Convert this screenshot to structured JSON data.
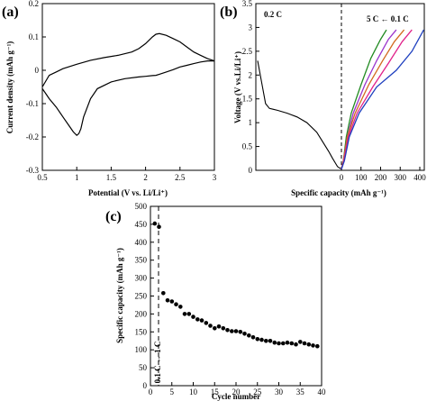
{
  "chart_data": [
    {
      "panel": "(a)",
      "type": "line",
      "xlabel": "Potential (V vs. Li/Li⁺)",
      "ylabel": "Current density (mAh g⁻¹)",
      "xlim": [
        0.5,
        3
      ],
      "ylim": [
        -0.3,
        0.2
      ],
      "xticks": [
        "0.5",
        "1",
        "1.5",
        "2",
        "2.5",
        "3"
      ],
      "yticks": [
        "-0.3",
        "-0.2",
        "-0.1",
        "0",
        "0.1",
        "0.2"
      ],
      "series": [
        {
          "color": "#000000",
          "x": [
            0.5,
            0.55,
            0.6,
            0.7,
            0.8,
            0.9,
            0.95,
            1.0,
            1.03,
            1.06,
            1.1,
            1.2,
            1.3,
            1.5,
            1.7,
            1.9,
            2.0,
            2.1,
            2.15,
            2.2,
            2.3,
            2.4,
            2.5,
            2.6,
            2.7,
            2.8,
            2.9,
            3.0,
            2.9,
            2.8,
            2.7,
            2.6,
            2.5,
            2.4,
            2.3,
            2.2,
            2.15,
            2.1,
            2.05,
            2.0,
            1.9,
            1.8,
            1.6,
            1.4,
            1.2,
            1.0,
            0.8,
            0.7,
            0.6,
            0.5
          ],
          "y": [
            -0.055,
            -0.07,
            -0.085,
            -0.11,
            -0.14,
            -0.17,
            -0.185,
            -0.195,
            -0.19,
            -0.175,
            -0.14,
            -0.085,
            -0.055,
            -0.035,
            -0.025,
            -0.02,
            -0.018,
            -0.016,
            -0.015,
            -0.012,
            -0.005,
            0.002,
            0.01,
            0.015,
            0.02,
            0.025,
            0.028,
            0.028,
            0.035,
            0.045,
            0.055,
            0.07,
            0.085,
            0.095,
            0.105,
            0.11,
            0.108,
            0.1,
            0.09,
            0.08,
            0.065,
            0.055,
            0.045,
            0.038,
            0.03,
            0.018,
            0.005,
            -0.005,
            -0.015,
            -0.05
          ]
        }
      ]
    },
    {
      "panel": "(b)",
      "type": "line",
      "xlabel": "Specific capacity (mAh g⁻¹)",
      "ylabel": "Voltage (V vs.Li/Li⁺)",
      "ylim": [
        0,
        3.5
      ],
      "yticks": [
        "0",
        "0.5",
        "1",
        "1.5",
        "2",
        "2.5",
        "3",
        "3.5"
      ],
      "xticks": [
        "0",
        "100",
        "200",
        "300",
        "400"
      ],
      "annotations": [
        "0.2 C",
        "5 C ← 0.1 C"
      ],
      "discharge": {
        "color": "#000000",
        "x": [
          0,
          20,
          40,
          60,
          80,
          100,
          150,
          200,
          250,
          300,
          330,
          360,
          380,
          395,
          405,
          415,
          420,
          425
        ],
        "y": [
          2.3,
          1.85,
          1.4,
          1.3,
          1.28,
          1.26,
          1.2,
          1.12,
          1.0,
          0.8,
          0.6,
          0.4,
          0.25,
          0.15,
          0.08,
          0.05,
          0.04,
          0.03
        ]
      },
      "series": [
        {
          "color": "#228B22",
          "x": [
            0,
            10,
            25,
            50,
            100,
            150,
            200,
            230
          ],
          "y": [
            0.02,
            0.2,
            0.7,
            1.2,
            1.8,
            2.35,
            2.75,
            2.95
          ]
        },
        {
          "color": "#9932CC",
          "x": [
            0,
            10,
            30,
            60,
            120,
            180,
            240,
            280
          ],
          "y": [
            0.02,
            0.2,
            0.7,
            1.2,
            1.8,
            2.3,
            2.75,
            2.95
          ]
        },
        {
          "color": "#D2691E",
          "x": [
            0,
            10,
            30,
            70,
            140,
            210,
            270,
            320
          ],
          "y": [
            0.02,
            0.2,
            0.7,
            1.2,
            1.8,
            2.3,
            2.7,
            2.95
          ]
        },
        {
          "color": "#E0218A",
          "x": [
            0,
            12,
            35,
            80,
            160,
            240,
            310,
            360
          ],
          "y": [
            0.02,
            0.2,
            0.7,
            1.2,
            1.75,
            2.25,
            2.7,
            2.95
          ]
        },
        {
          "color": "#1E3FBF",
          "x": [
            0,
            15,
            40,
            90,
            180,
            280,
            360,
            420
          ],
          "y": [
            0.02,
            0.2,
            0.7,
            1.2,
            1.75,
            2.1,
            2.5,
            2.95
          ]
        }
      ]
    },
    {
      "panel": "(c)",
      "type": "scatter",
      "xlabel": "Cycle number",
      "ylabel": "Specific capacity (mAh g⁻¹)",
      "xlim": [
        0,
        40
      ],
      "ylim": [
        0,
        500
      ],
      "xticks": [
        "0",
        "5",
        "10",
        "15",
        "20",
        "25",
        "30",
        "35",
        "40"
      ],
      "yticks": [
        "0",
        "50",
        "100",
        "150",
        "200",
        "250",
        "300",
        "350",
        "400",
        "450",
        "500"
      ],
      "annotation": "0.1 C ↔ 1 C",
      "x": [
        1,
        2,
        3,
        4,
        5,
        6,
        7,
        8,
        9,
        10,
        11,
        12,
        13,
        14,
        15,
        16,
        17,
        18,
        19,
        20,
        21,
        22,
        23,
        24,
        25,
        26,
        27,
        28,
        29,
        30,
        31,
        32,
        33,
        34,
        35,
        36,
        37,
        38,
        39
      ],
      "y": [
        452,
        443,
        258,
        238,
        235,
        227,
        220,
        200,
        200,
        192,
        185,
        182,
        175,
        167,
        160,
        165,
        160,
        155,
        152,
        152,
        150,
        145,
        140,
        135,
        130,
        128,
        125,
        125,
        120,
        118,
        118,
        120,
        118,
        115,
        122,
        118,
        115,
        112,
        110
      ]
    }
  ]
}
